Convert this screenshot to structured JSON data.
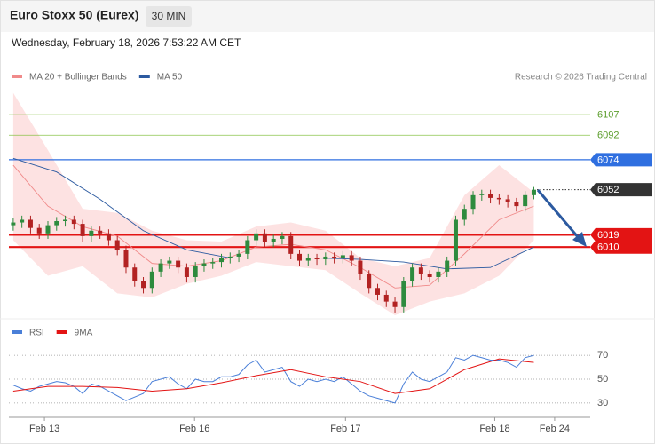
{
  "header": {
    "title": "Euro Stoxx 50 (Eurex)",
    "timeframe": "30 MIN",
    "timestamp": "Wednesday, February 18, 2026 7:53:22 AM CET"
  },
  "chart_data": [
    {
      "type": "candlestick",
      "credit": "Research © 2026 Trading Central",
      "up_color": "#2e8b3e",
      "down_color": "#b22222",
      "band_color": "#fde2e2",
      "xlim": [
        -0.5,
        66.5
      ],
      "ylim": [
        5960,
        6126
      ],
      "x": [
        0,
        1,
        2,
        3,
        4,
        5,
        6,
        7,
        8,
        9,
        10,
        11,
        12,
        13,
        14,
        15,
        16,
        17,
        18,
        19,
        20,
        21,
        22,
        23,
        24,
        25,
        26,
        27,
        28,
        29,
        30,
        31,
        32,
        33,
        34,
        35,
        36,
        37,
        38,
        39,
        40,
        41,
        42,
        43,
        44,
        45,
        46,
        47,
        48,
        49,
        50,
        51,
        52,
        53,
        54,
        55,
        56,
        57,
        58,
        59,
        60
      ],
      "open": [
        6026,
        6028,
        6030,
        6024,
        6020,
        6026,
        6029,
        6030,
        6027,
        6018,
        6022,
        6020,
        6015,
        6008,
        5995,
        5985,
        5980,
        5992,
        5998,
        6000,
        5995,
        5988,
        5996,
        5998,
        5999,
        6002,
        6003,
        6005,
        6015,
        6020,
        6014,
        6016,
        6018,
        6005,
        6000,
        6002,
        6001,
        6003,
        6002,
        6004,
        6000,
        5990,
        5980,
        5975,
        5970,
        5966,
        5985,
        5995,
        5990,
        5988,
        5992,
        6000,
        6030,
        6038,
        6048,
        6049,
        6046,
        6045,
        6043,
        6040,
        6048
      ],
      "high": [
        6031,
        6033,
        6033,
        6027,
        6029,
        6032,
        6033,
        6033,
        6030,
        6025,
        6025,
        6023,
        6018,
        6011,
        5998,
        5988,
        5995,
        6001,
        6003,
        6003,
        5998,
        5999,
        6001,
        6002,
        6005,
        6006,
        6008,
        6018,
        6023,
        6023,
        6019,
        6021,
        6021,
        6008,
        6005,
        6005,
        6006,
        6006,
        6007,
        6007,
        6003,
        5993,
        5983,
        5978,
        5973,
        5988,
        5998,
        5998,
        5993,
        5995,
        6003,
        6033,
        6041,
        6051,
        6052,
        6052,
        6049,
        6048,
        6046,
        6051,
        6054
      ],
      "low": [
        6022,
        6024,
        6020,
        6016,
        6016,
        6022,
        6025,
        6023,
        6014,
        6014,
        6016,
        6011,
        6004,
        5991,
        5981,
        5976,
        5976,
        5988,
        5994,
        5991,
        5984,
        5984,
        5992,
        5994,
        5995,
        5998,
        5999,
        6001,
        6011,
        6010,
        6010,
        6012,
        6001,
        5996,
        5996,
        5997,
        5997,
        5998,
        5998,
        5996,
        5986,
        5976,
        5971,
        5966,
        5962,
        5962,
        5981,
        5986,
        5984,
        5984,
        5988,
        5996,
        6026,
        6034,
        6044,
        6042,
        6041,
        6039,
        6036,
        6036,
        6045
      ],
      "close": [
        6028,
        6030,
        6024,
        6020,
        6026,
        6029,
        6030,
        6027,
        6018,
        6022,
        6020,
        6015,
        6008,
        5995,
        5985,
        5980,
        5992,
        5998,
        6000,
        5995,
        5988,
        5996,
        5998,
        5999,
        6002,
        6003,
        6005,
        6015,
        6020,
        6014,
        6016,
        6018,
        6005,
        6000,
        6002,
        6001,
        6003,
        6002,
        6004,
        6000,
        5990,
        5980,
        5975,
        5970,
        5966,
        5985,
        5995,
        5990,
        5988,
        5992,
        6000,
        6030,
        6038,
        6048,
        6049,
        6046,
        6045,
        6043,
        6040,
        6048,
        6052
      ],
      "series": [
        {
          "name": "MA 20 + Bollinger Bands",
          "color": "#f08a8a",
          "x": [
            0,
            4,
            8,
            12,
            16,
            20,
            24,
            28,
            32,
            36,
            40,
            44,
            48,
            52,
            56,
            60
          ],
          "values": [
            6070,
            6040,
            6025,
            6018,
            5998,
            5996,
            6000,
            6010,
            6012,
            6008,
            5995,
            5980,
            5982,
            6005,
            6030,
            6040
          ],
          "upper": [
            6123,
            6081,
            6038,
            6035,
            6022,
            6015,
            6014,
            6025,
            6028,
            6022,
            6002,
            5996,
            6002,
            6048,
            6070,
            6050
          ],
          "lower": [
            6015,
            5989,
            5996,
            5976,
            5973,
            5983,
            5989,
            5999,
            5996,
            5993,
            5976,
            5960,
            5970,
            5976,
            5989,
            6015
          ]
        },
        {
          "name": "MA 50",
          "color": "#2c5aa0",
          "x": [
            0,
            5,
            10,
            15,
            20,
            25,
            30,
            35,
            40,
            45,
            50,
            55,
            60
          ],
          "values": [
            6075,
            6065,
            6045,
            6022,
            6008,
            6002,
            6002,
            6002,
            6001,
            5999,
            5994,
            5995,
            6010
          ]
        }
      ],
      "levels": [
        {
          "value": 6107,
          "color": "#8bc34a",
          "style": "thin",
          "tag": false
        },
        {
          "value": 6092,
          "color": "#8bc34a",
          "style": "thin",
          "tag": false
        },
        {
          "value": 6074,
          "color": "#2f6fe0",
          "style": "solid",
          "tag": true
        },
        {
          "value": 6052,
          "color": "#333333",
          "style": "dotted",
          "tag": true
        },
        {
          "value": 6019,
          "color": "#e31414",
          "style": "thick",
          "tag": true
        },
        {
          "value": 6010,
          "color": "#e31414",
          "style": "thick",
          "tag": true
        }
      ]
    },
    {
      "type": "line",
      "xlim": [
        -0.5,
        66.5
      ],
      "ylim": [
        21,
        79
      ],
      "yticks": [
        30,
        50,
        70
      ],
      "grid": true,
      "xticks": [
        {
          "value": 3.6,
          "label": "Feb 13"
        },
        {
          "value": 20.9,
          "label": "Feb 16"
        },
        {
          "value": 38.3,
          "label": "Feb 17"
        },
        {
          "value": 55.5,
          "label": "Feb 18"
        },
        {
          "value": 62.4,
          "label": "Feb 24"
        }
      ],
      "series": [
        {
          "name": "RSI",
          "color": "#4a7fd8",
          "x": [
            0,
            1,
            2,
            3,
            4,
            5,
            6,
            7,
            8,
            9,
            10,
            11,
            12,
            13,
            14,
            15,
            16,
            17,
            18,
            19,
            20,
            21,
            22,
            23,
            24,
            25,
            26,
            27,
            28,
            29,
            30,
            31,
            32,
            33,
            34,
            35,
            36,
            37,
            38,
            39,
            40,
            41,
            42,
            43,
            44,
            45,
            46,
            47,
            48,
            49,
            50,
            51,
            52,
            53,
            54,
            55,
            56,
            57,
            58,
            59,
            60
          ],
          "values": [
            45,
            42,
            40,
            44,
            46,
            48,
            47,
            44,
            38,
            46,
            44,
            40,
            36,
            32,
            35,
            38,
            48,
            50,
            52,
            46,
            42,
            50,
            48,
            48,
            52,
            52,
            54,
            62,
            66,
            56,
            58,
            60,
            48,
            44,
            50,
            48,
            50,
            48,
            52,
            46,
            40,
            36,
            34,
            32,
            30,
            46,
            56,
            50,
            48,
            52,
            56,
            68,
            66,
            70,
            68,
            66,
            66,
            64,
            60,
            68,
            70
          ]
        },
        {
          "name": "9MA",
          "color": "#e31414",
          "x": [
            0,
            4,
            8,
            12,
            16,
            20,
            24,
            28,
            32,
            36,
            40,
            44,
            48,
            52,
            56,
            60
          ],
          "values": [
            40,
            44,
            44,
            43,
            40,
            42,
            47,
            53,
            58,
            52,
            48,
            38,
            42,
            58,
            67,
            64
          ]
        }
      ]
    }
  ]
}
